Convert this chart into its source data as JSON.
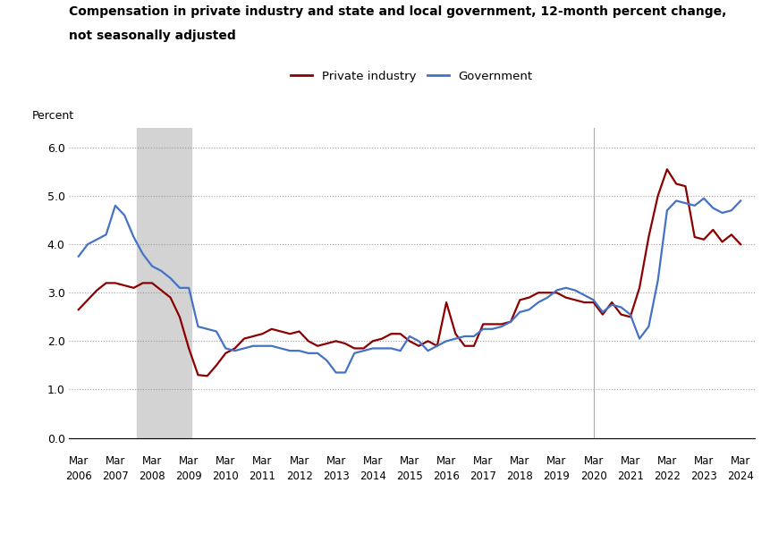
{
  "title_line1": "Compensation in private industry and state and local government, 12-month percent change,",
  "title_line2": "not seasonally adjusted",
  "ylabel": "Percent",
  "legend_private": "Private industry",
  "legend_govt": "Government",
  "private_color": "#8B0000",
  "govt_color": "#4472C4",
  "background_color": "#FFFFFF",
  "recession_color": "#D3D3D3",
  "recession_start": 2007.75,
  "recession_end": 2009.25,
  "vertical_line1": 2020.17,
  "ylim": [
    0.0,
    6.4
  ],
  "yticks": [
    0.0,
    1.0,
    2.0,
    3.0,
    4.0,
    5.0,
    6.0
  ],
  "xtick_years": [
    2006,
    2007,
    2008,
    2009,
    2010,
    2011,
    2012,
    2013,
    2014,
    2015,
    2016,
    2017,
    2018,
    2019,
    2020,
    2021,
    2022,
    2023,
    2024
  ],
  "private_x": [
    2006.17,
    2006.42,
    2006.67,
    2006.92,
    2007.17,
    2007.42,
    2007.67,
    2007.92,
    2008.17,
    2008.42,
    2008.67,
    2008.92,
    2009.17,
    2009.42,
    2009.67,
    2009.92,
    2010.17,
    2010.42,
    2010.67,
    2010.92,
    2011.17,
    2011.42,
    2011.67,
    2011.92,
    2012.17,
    2012.42,
    2012.67,
    2012.92,
    2013.17,
    2013.42,
    2013.67,
    2013.92,
    2014.17,
    2014.42,
    2014.67,
    2014.92,
    2015.17,
    2015.42,
    2015.67,
    2015.92,
    2016.17,
    2016.42,
    2016.67,
    2016.92,
    2017.17,
    2017.42,
    2017.67,
    2017.92,
    2018.17,
    2018.42,
    2018.67,
    2018.92,
    2019.17,
    2019.42,
    2019.67,
    2019.92,
    2020.17,
    2020.42,
    2020.67,
    2020.92,
    2021.17,
    2021.42,
    2021.67,
    2021.92,
    2022.17,
    2022.42,
    2022.67,
    2022.92,
    2023.17,
    2023.42,
    2023.67,
    2023.92,
    2024.17
  ],
  "private_y": [
    2.65,
    2.85,
    3.05,
    3.2,
    3.2,
    3.15,
    3.1,
    3.2,
    3.2,
    3.05,
    2.9,
    2.5,
    1.85,
    1.3,
    1.28,
    1.5,
    1.75,
    1.85,
    2.05,
    2.1,
    2.15,
    2.25,
    2.2,
    2.15,
    2.2,
    2.0,
    1.9,
    1.95,
    2.0,
    1.95,
    1.85,
    1.85,
    2.0,
    2.05,
    2.15,
    2.15,
    2.0,
    1.9,
    2.0,
    1.9,
    2.8,
    2.15,
    1.9,
    1.9,
    2.35,
    2.35,
    2.35,
    2.4,
    2.85,
    2.9,
    3.0,
    3.0,
    3.0,
    2.9,
    2.85,
    2.8,
    2.8,
    2.55,
    2.8,
    2.55,
    2.5,
    3.1,
    4.15,
    5.0,
    5.55,
    5.25,
    5.2,
    4.15,
    4.1,
    4.3,
    4.05,
    4.2,
    4.0
  ],
  "govt_x": [
    2006.17,
    2006.42,
    2006.67,
    2006.92,
    2007.17,
    2007.42,
    2007.67,
    2007.92,
    2008.17,
    2008.42,
    2008.67,
    2008.92,
    2009.17,
    2009.42,
    2009.67,
    2009.92,
    2010.17,
    2010.42,
    2010.67,
    2010.92,
    2011.17,
    2011.42,
    2011.67,
    2011.92,
    2012.17,
    2012.42,
    2012.67,
    2012.92,
    2013.17,
    2013.42,
    2013.67,
    2013.92,
    2014.17,
    2014.42,
    2014.67,
    2014.92,
    2015.17,
    2015.42,
    2015.67,
    2015.92,
    2016.17,
    2016.42,
    2016.67,
    2016.92,
    2017.17,
    2017.42,
    2017.67,
    2017.92,
    2018.17,
    2018.42,
    2018.67,
    2018.92,
    2019.17,
    2019.42,
    2019.67,
    2019.92,
    2020.17,
    2020.42,
    2020.67,
    2020.92,
    2021.17,
    2021.42,
    2021.67,
    2021.92,
    2022.17,
    2022.42,
    2022.67,
    2022.92,
    2023.17,
    2023.42,
    2023.67,
    2023.92,
    2024.17
  ],
  "govt_y": [
    3.75,
    4.0,
    4.1,
    4.2,
    4.8,
    4.6,
    4.15,
    3.8,
    3.55,
    3.45,
    3.3,
    3.1,
    3.1,
    2.3,
    2.25,
    2.2,
    1.85,
    1.8,
    1.85,
    1.9,
    1.9,
    1.9,
    1.85,
    1.8,
    1.8,
    1.75,
    1.75,
    1.6,
    1.35,
    1.35,
    1.75,
    1.8,
    1.85,
    1.85,
    1.85,
    1.8,
    2.1,
    2.0,
    1.8,
    1.9,
    2.0,
    2.05,
    2.1,
    2.1,
    2.25,
    2.25,
    2.3,
    2.4,
    2.6,
    2.65,
    2.8,
    2.9,
    3.05,
    3.1,
    3.05,
    2.95,
    2.85,
    2.6,
    2.75,
    2.7,
    2.55,
    2.05,
    2.3,
    3.25,
    4.7,
    4.9,
    4.85,
    4.8,
    4.95,
    4.75,
    4.65,
    4.7,
    4.9
  ]
}
